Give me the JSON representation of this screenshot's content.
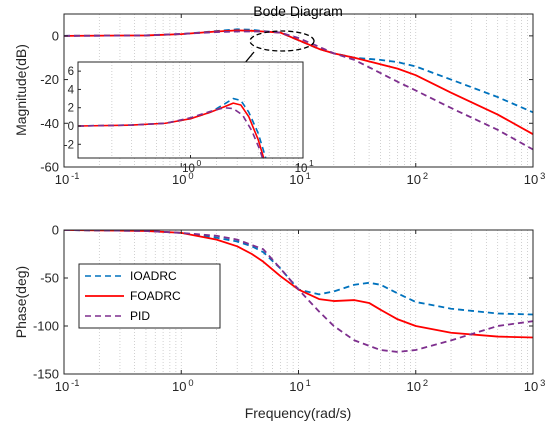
{
  "chart_data": [
    {
      "type": "line",
      "title": "Bode Diagram",
      "xlabel": "",
      "ylabel": "Magnitude(dB)",
      "x_scale": "log",
      "xlim": [
        0.1,
        1000
      ],
      "ylim": [
        -60,
        10
      ],
      "xtick_labels": [
        {
          "base": "10",
          "exp": "-1"
        },
        {
          "base": "10",
          "exp": "0"
        },
        {
          "base": "10",
          "exp": "1"
        },
        {
          "base": "10",
          "exp": "2"
        },
        {
          "base": "10",
          "exp": "3"
        }
      ],
      "ytick_labels": [
        "0",
        "-20",
        "-40",
        "-60"
      ],
      "grid": "x-minor-dotted",
      "series": [
        {
          "key": "ioadrc",
          "color": "#0072BD",
          "dash": "dashed",
          "points": [
            [
              0.1,
              0
            ],
            [
              0.5,
              0.2
            ],
            [
              1,
              0.8
            ],
            [
              2,
              2.2
            ],
            [
              3,
              3
            ],
            [
              4,
              2.8
            ],
            [
              5,
              2.2
            ],
            [
              7,
              1.5
            ],
            [
              10,
              -2
            ],
            [
              15,
              -6
            ],
            [
              20,
              -8
            ],
            [
              30,
              -10
            ],
            [
              50,
              -11
            ],
            [
              70,
              -12
            ],
            [
              100,
              -14
            ],
            [
              200,
              -20
            ],
            [
              500,
              -28
            ],
            [
              1000,
              -35
            ]
          ]
        },
        {
          "key": "foadrc",
          "color": "#FF0000",
          "dash": "solid",
          "points": [
            [
              0.1,
              0
            ],
            [
              0.5,
              0.2
            ],
            [
              1,
              0.8
            ],
            [
              2,
              2
            ],
            [
              3,
              2.5
            ],
            [
              4,
              2.3
            ],
            [
              5,
              2
            ],
            [
              7,
              1.5
            ],
            [
              10,
              -2
            ],
            [
              15,
              -6
            ],
            [
              20,
              -8
            ],
            [
              30,
              -10
            ],
            [
              50,
              -13
            ],
            [
              70,
              -15
            ],
            [
              100,
              -18
            ],
            [
              200,
              -26
            ],
            [
              500,
              -36
            ],
            [
              1000,
              -45
            ]
          ]
        },
        {
          "key": "pid",
          "color": "#7E2F8E",
          "dash": "dashed",
          "points": [
            [
              0.1,
              0
            ],
            [
              0.5,
              0.2
            ],
            [
              1,
              0.9
            ],
            [
              2,
              1.7
            ],
            [
              3,
              2
            ],
            [
              5,
              2
            ],
            [
              7,
              1.5
            ],
            [
              10,
              -1
            ],
            [
              15,
              -5
            ],
            [
              20,
              -8
            ],
            [
              30,
              -11
            ],
            [
              50,
              -17
            ],
            [
              70,
              -21
            ],
            [
              100,
              -25
            ],
            [
              200,
              -33
            ],
            [
              500,
              -43
            ],
            [
              1000,
              -52
            ]
          ]
        }
      ],
      "inset": {
        "xlim": [
          0.1,
          10
        ],
        "ylim": [
          -3.5,
          7
        ],
        "xtick_labels": [
          {
            "base": "10",
            "exp": "0"
          },
          {
            "base": "10",
            "exp": "1"
          }
        ],
        "ytick_labels": [
          "6",
          "4",
          "2",
          "0",
          "-2"
        ],
        "series": [
          {
            "key": "ioadrc",
            "color": "#0072BD",
            "dash": "dashed",
            "points": [
              [
                0.1,
                0
              ],
              [
                0.3,
                0.1
              ],
              [
                0.6,
                0.3
              ],
              [
                1,
                0.8
              ],
              [
                1.5,
                1.5
              ],
              [
                2,
                2.4
              ],
              [
                2.4,
                3
              ],
              [
                2.8,
                2.8
              ],
              [
                3.3,
                1.5
              ],
              [
                4,
                -0.8
              ],
              [
                4.8,
                -4
              ]
            ]
          },
          {
            "key": "foadrc",
            "color": "#FF0000",
            "dash": "solid",
            "points": [
              [
                0.1,
                0
              ],
              [
                0.3,
                0.1
              ],
              [
                0.6,
                0.3
              ],
              [
                1,
                0.8
              ],
              [
                1.5,
                1.5
              ],
              [
                2,
                2.1
              ],
              [
                2.4,
                2.5
              ],
              [
                2.8,
                2.3
              ],
              [
                3.3,
                1
              ],
              [
                4,
                -1.5
              ],
              [
                4.6,
                -4
              ]
            ]
          },
          {
            "key": "pid",
            "color": "#7E2F8E",
            "dash": "dashed",
            "points": [
              [
                0.1,
                0
              ],
              [
                0.3,
                0.1
              ],
              [
                0.6,
                0.3
              ],
              [
                1,
                0.9
              ],
              [
                1.5,
                1.6
              ],
              [
                2,
                2
              ],
              [
                2.4,
                1.9
              ],
              [
                2.9,
                1.2
              ],
              [
                3.5,
                -0.5
              ],
              [
                4.1,
                -2.5
              ],
              [
                4.5,
                -4
              ]
            ]
          }
        ]
      }
    },
    {
      "type": "line",
      "title": "",
      "xlabel": "Frequency(rad/s)",
      "ylabel": "Phase(deg)",
      "x_scale": "log",
      "xlim": [
        0.1,
        1000
      ],
      "ylim": [
        -150,
        0
      ],
      "xtick_labels": [
        {
          "base": "10",
          "exp": "-1"
        },
        {
          "base": "10",
          "exp": "0"
        },
        {
          "base": "10",
          "exp": "1"
        },
        {
          "base": "10",
          "exp": "2"
        },
        {
          "base": "10",
          "exp": "3"
        }
      ],
      "ytick_labels": [
        "0",
        "-50",
        "-100",
        "-150"
      ],
      "grid": "x-minor-dotted",
      "legend": {
        "position": "left",
        "entries": [
          "IOADRC",
          "FOADRC",
          "PID"
        ]
      },
      "series": [
        {
          "key": "ioadrc",
          "name": "IOADRC",
          "color": "#0072BD",
          "dash": "dashed",
          "points": [
            [
              0.1,
              0
            ],
            [
              0.5,
              -1
            ],
            [
              1,
              -3
            ],
            [
              2,
              -8
            ],
            [
              3,
              -12
            ],
            [
              4,
              -17
            ],
            [
              5,
              -23
            ],
            [
              7,
              -40
            ],
            [
              10,
              -62
            ],
            [
              15,
              -67
            ],
            [
              20,
              -64
            ],
            [
              30,
              -57
            ],
            [
              40,
              -55
            ],
            [
              50,
              -57
            ],
            [
              70,
              -66
            ],
            [
              100,
              -75
            ],
            [
              200,
              -82
            ],
            [
              500,
              -87
            ],
            [
              1000,
              -88
            ]
          ]
        },
        {
          "key": "foadrc",
          "name": "FOADRC",
          "color": "#FF0000",
          "dash": "solid",
          "points": [
            [
              0.1,
              0
            ],
            [
              0.5,
              -1
            ],
            [
              1,
              -3
            ],
            [
              2,
              -10
            ],
            [
              3,
              -17
            ],
            [
              4,
              -25
            ],
            [
              5,
              -33
            ],
            [
              7,
              -48
            ],
            [
              10,
              -62
            ],
            [
              15,
              -72
            ],
            [
              20,
              -74
            ],
            [
              30,
              -73
            ],
            [
              40,
              -76
            ],
            [
              50,
              -83
            ],
            [
              70,
              -93
            ],
            [
              100,
              -100
            ],
            [
              200,
              -107
            ],
            [
              500,
              -111
            ],
            [
              1000,
              -112
            ]
          ]
        },
        {
          "key": "pid",
          "name": "PID",
          "color": "#7E2F8E",
          "dash": "dashed",
          "points": [
            [
              0.1,
              0
            ],
            [
              0.5,
              -1
            ],
            [
              1,
              -3
            ],
            [
              2,
              -6
            ],
            [
              3,
              -10
            ],
            [
              5,
              -20
            ],
            [
              7,
              -40
            ],
            [
              10,
              -62
            ],
            [
              15,
              -85
            ],
            [
              20,
              -100
            ],
            [
              30,
              -115
            ],
            [
              50,
              -125
            ],
            [
              70,
              -127
            ],
            [
              100,
              -125
            ],
            [
              200,
              -115
            ],
            [
              500,
              -100
            ],
            [
              1000,
              -95
            ]
          ]
        }
      ]
    }
  ]
}
